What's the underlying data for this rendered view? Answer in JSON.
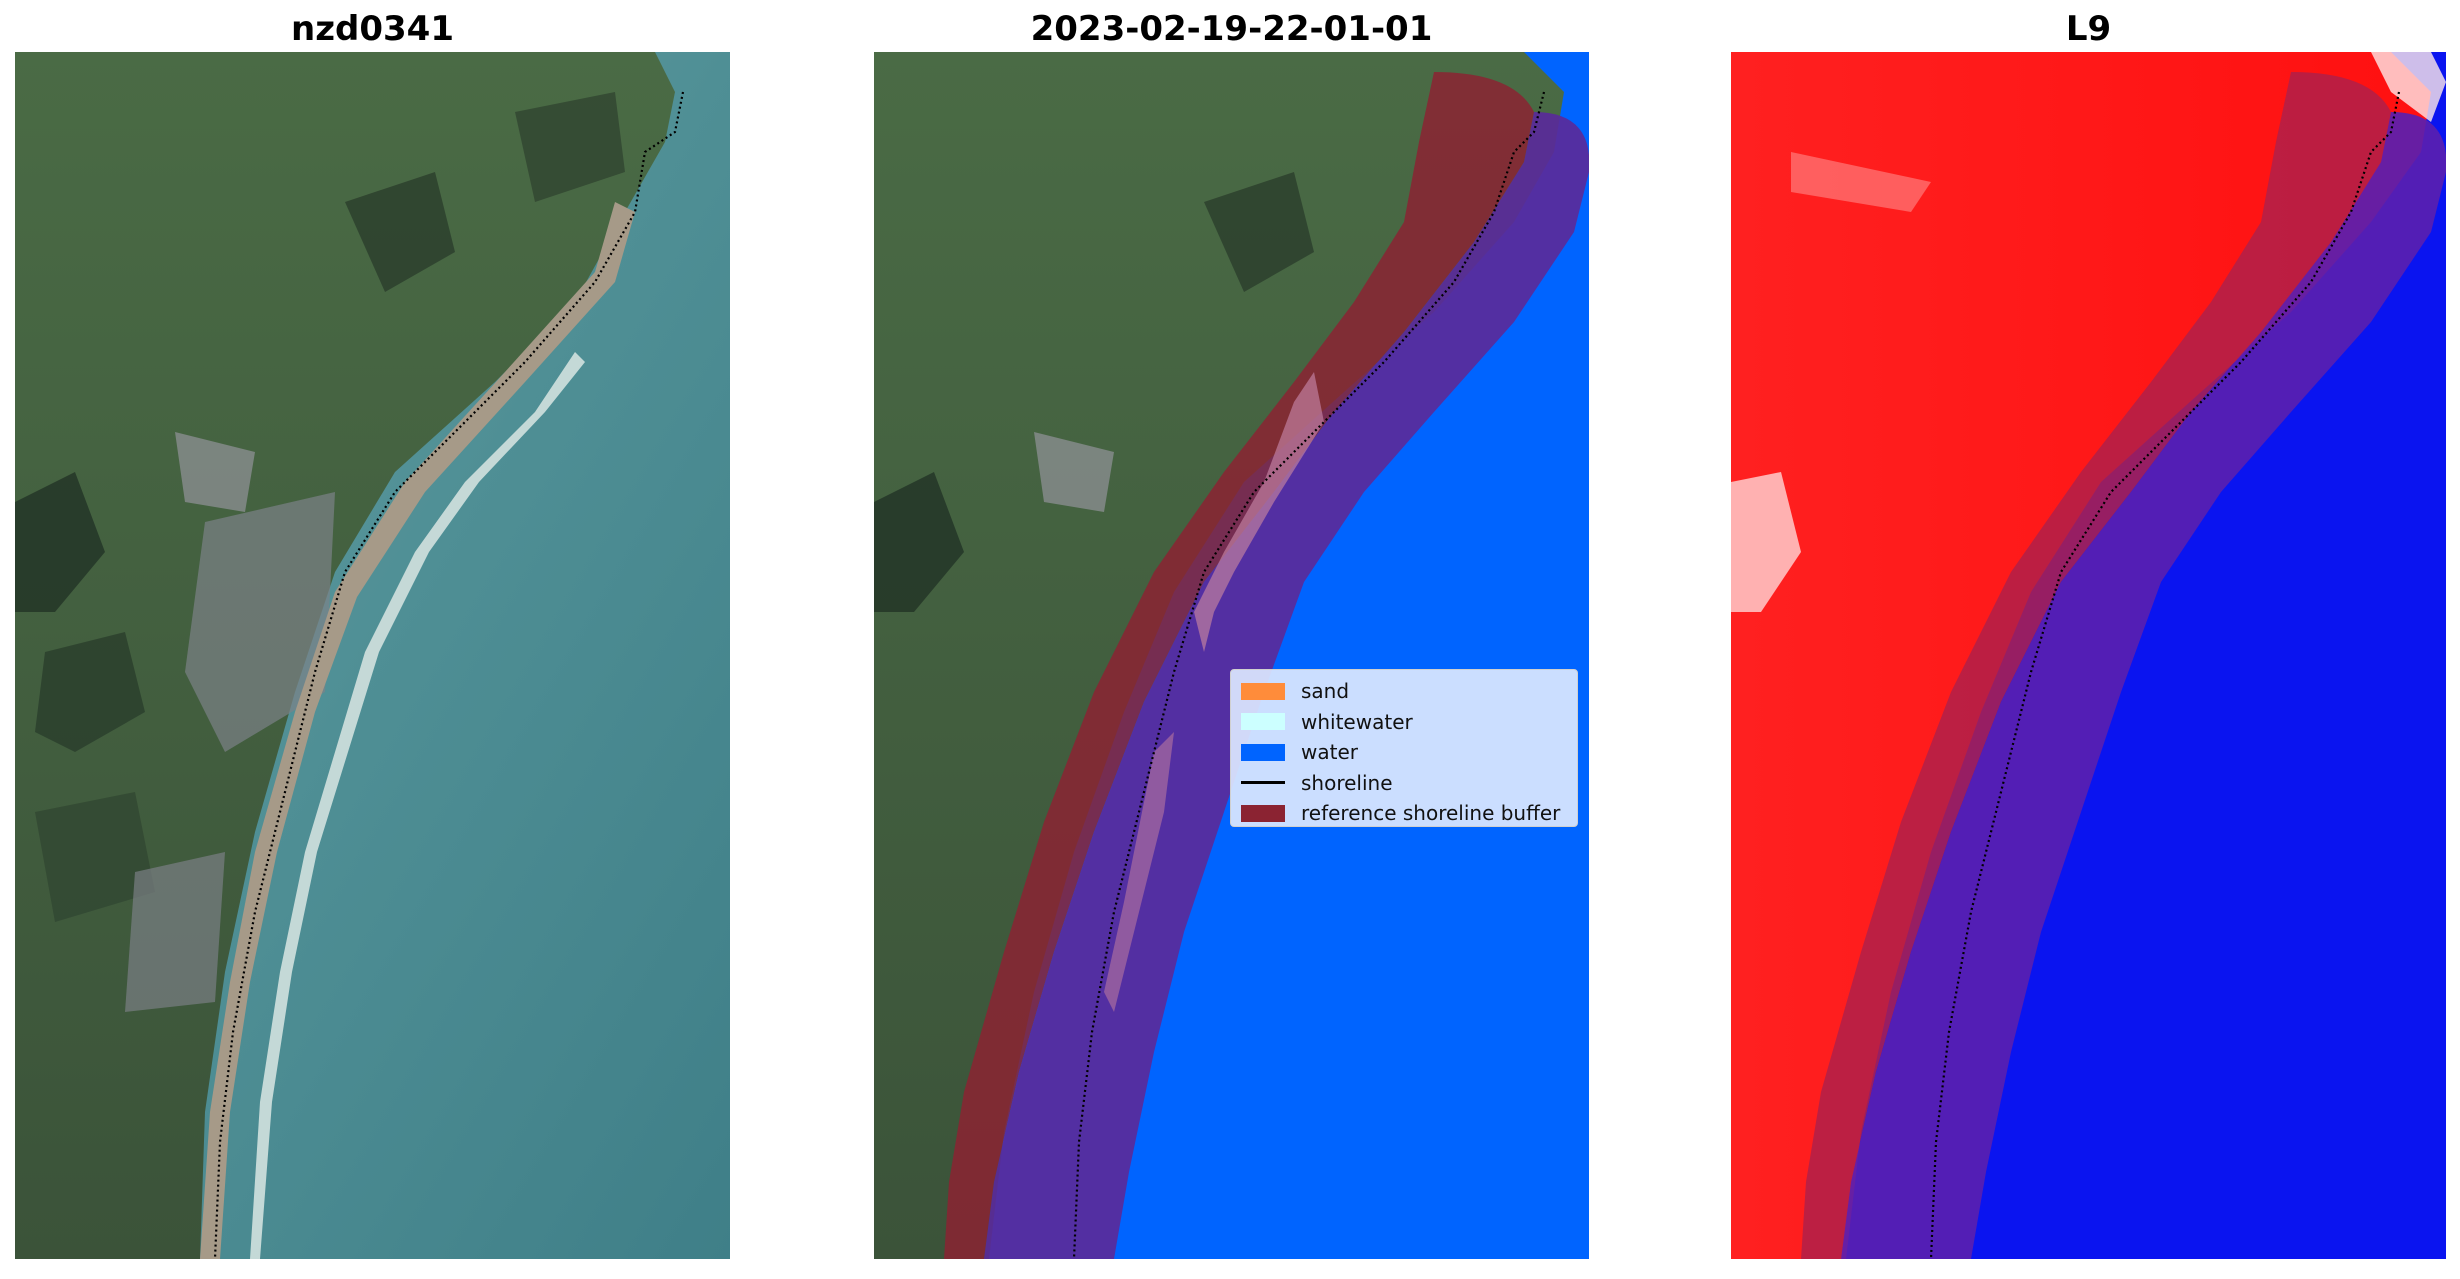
{
  "panels": [
    {
      "title": "nzd0341",
      "icon": "rgb-satellite-image"
    },
    {
      "title": "2023-02-19-22-01-01",
      "icon": "classified-satellite-image"
    },
    {
      "title": "L9",
      "icon": "index-satellite-image"
    }
  ],
  "legend": {
    "items": [
      {
        "label": "sand",
        "color": "#ff8c3a",
        "kind": "patch"
      },
      {
        "label": "whitewater",
        "color": "#ccffff",
        "kind": "patch"
      },
      {
        "label": "water",
        "color": "#0064ff",
        "kind": "patch"
      },
      {
        "label": "shoreline",
        "color": "#000000",
        "kind": "line"
      },
      {
        "label": "reference shoreline buffer",
        "color": "#8b2332",
        "kind": "patch"
      }
    ]
  },
  "colors": {
    "land_green": "#3f5a3c",
    "sea_teal": "#4f8f95",
    "water_blue": "#0064ff",
    "buffer_maroon": "#8b2332",
    "index_red": "#ff1a1a",
    "index_blue": "#0a14f0"
  }
}
